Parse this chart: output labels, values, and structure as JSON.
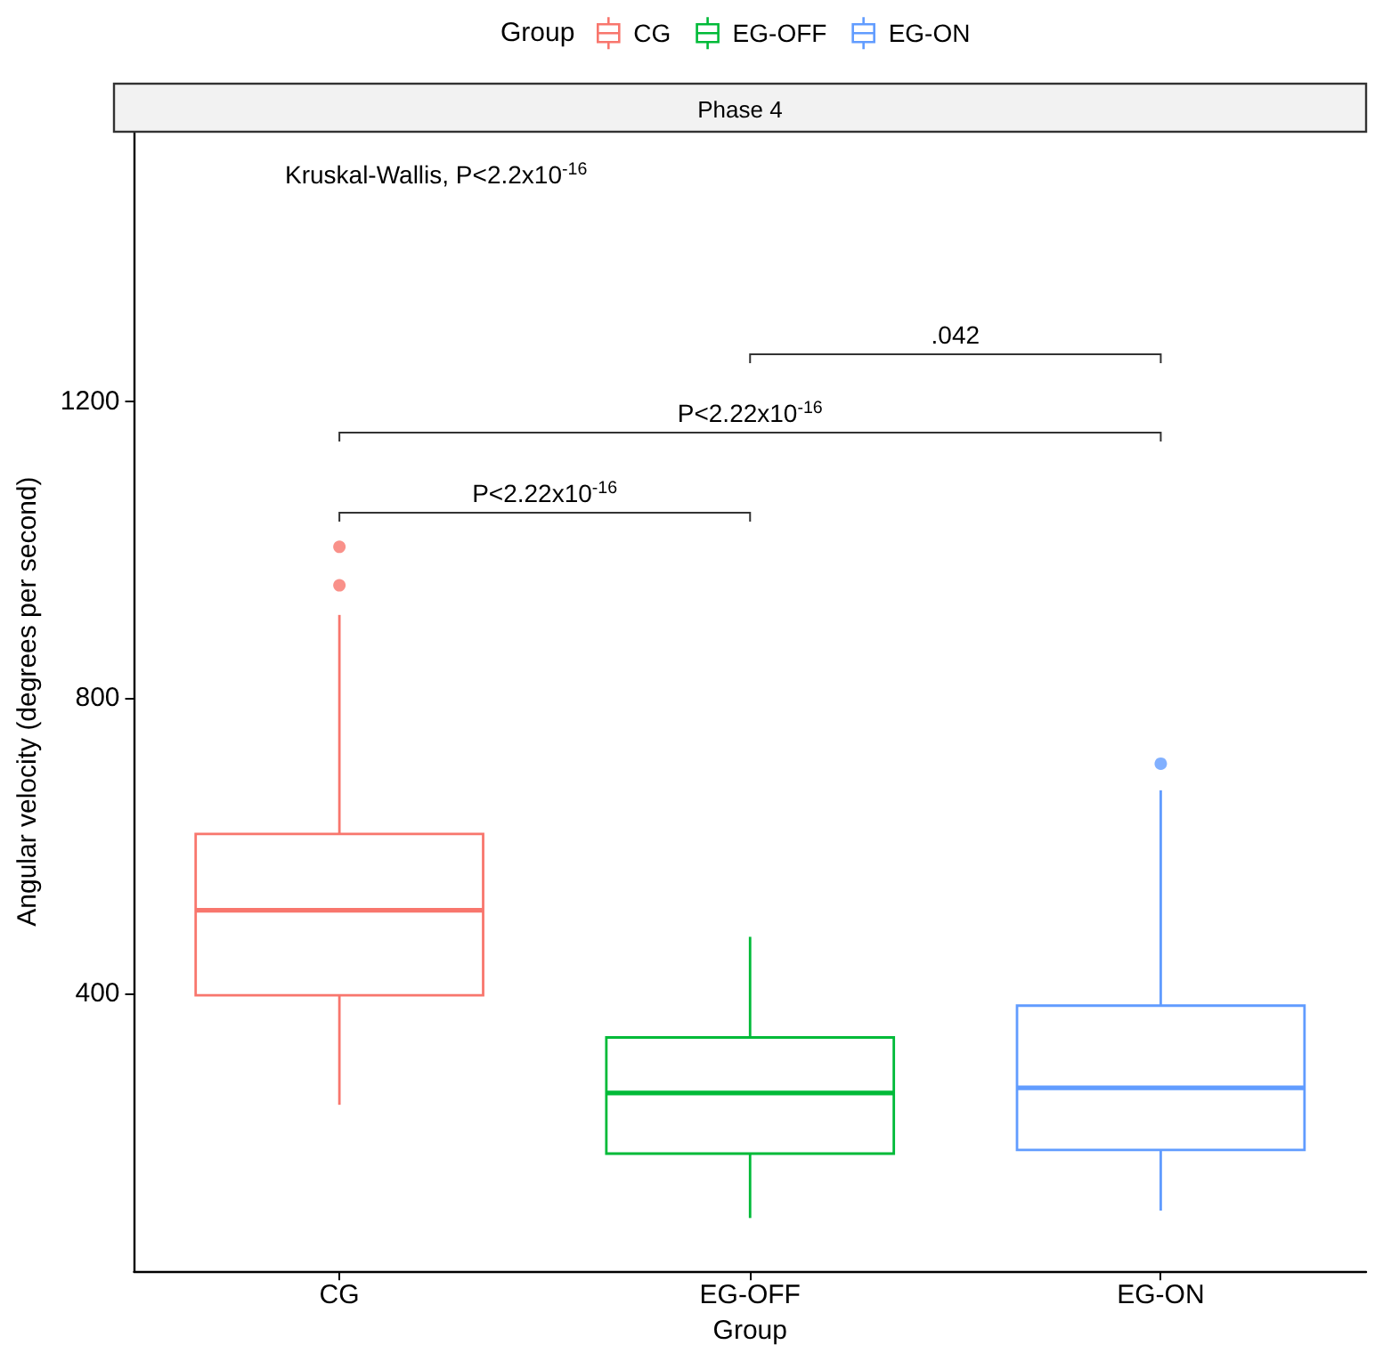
{
  "chart_data": {
    "type": "box",
    "title": "Phase 4",
    "xlabel": "Group",
    "ylabel": "Angular velocity (degrees per second)",
    "legend_title": "Group",
    "legend": "top",
    "categories": [
      "CG",
      "EG-OFF",
      "EG-ON"
    ],
    "series": [
      {
        "name": "CG",
        "color": "#f8766d",
        "x": [
          "CG"
        ],
        "boxes": [
          {
            "low": 250,
            "q1": 398,
            "median": 513,
            "q3": 616,
            "high": 912,
            "outliers": [
              952,
              1004
            ]
          }
        ]
      },
      {
        "name": "EG-OFF",
        "color": "#00ba38",
        "x": [
          "EG-OFF"
        ],
        "boxes": [
          {
            "low": 97,
            "q1": 184,
            "median": 266,
            "q3": 341,
            "high": 477
          }
        ]
      },
      {
        "name": "EG-ON",
        "color": "#619cff",
        "x": [
          "EG-ON"
        ],
        "boxes": [
          {
            "low": 107,
            "q1": 189,
            "median": 273,
            "q3": 384,
            "high": 675,
            "outliers": [
              711
            ]
          }
        ]
      }
    ],
    "ylim": [
      25,
      1565
    ],
    "yticks": [
      400,
      800,
      1200
    ],
    "annotations": [
      "Kruskal-Wallis, P<2.2x10$^{-16}$",
      "P<2.22x10$^{-16}$",
      "P<2.22x10$^{-16}$",
      ".042"
    ]
  }
}
